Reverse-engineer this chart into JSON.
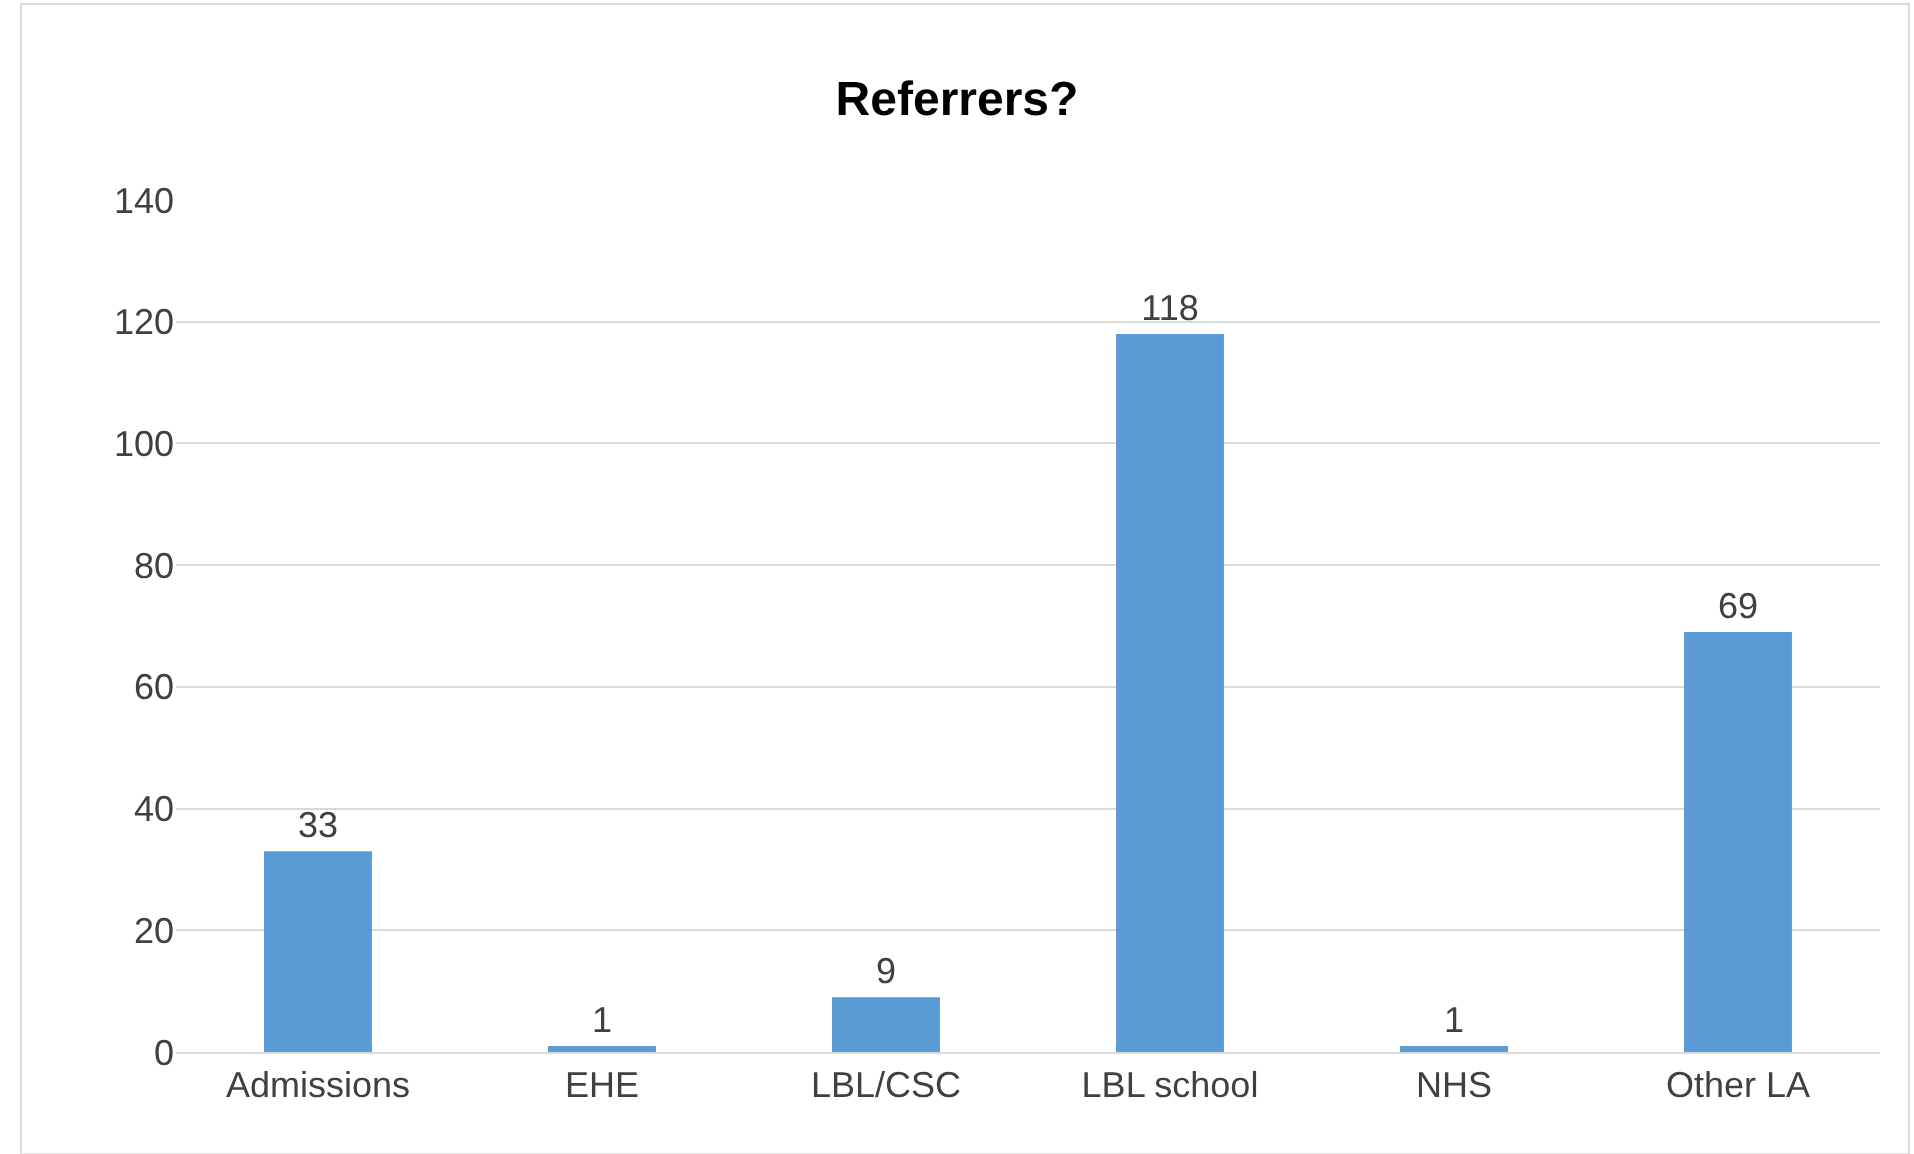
{
  "chart_data": {
    "type": "bar",
    "title": "Referrers?",
    "categories": [
      "Admissions",
      "EHE",
      "LBL/CSC",
      "LBL school",
      "NHS",
      "Other LA"
    ],
    "values": [
      33,
      1,
      9,
      118,
      1,
      69
    ],
    "color": "#5b9bd5",
    "ylim": [
      0,
      140
    ],
    "yticks": [
      0,
      20,
      40,
      60,
      80,
      100,
      120,
      140
    ],
    "grid": "y",
    "data_labels": true
  }
}
